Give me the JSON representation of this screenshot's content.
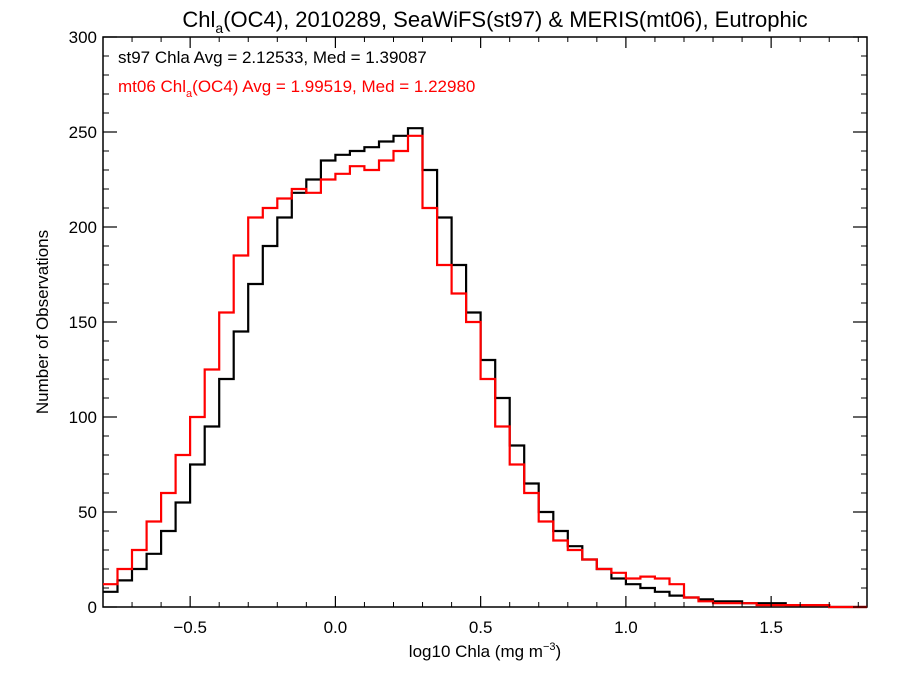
{
  "chart_data": {
    "type": "line",
    "title": {
      "prefix": "Chl",
      "subscript": "a",
      "rest": "(OC4), 2010289, SeaWiFS(st97) & MERIS(mt06), Eutrophic"
    },
    "xlabel": {
      "main": "log10 Chla (mg m",
      "superscript": "−3",
      "close": ")"
    },
    "ylabel": "Number of Observations",
    "xlim": [
      -0.8,
      1.83
    ],
    "ylim": [
      0,
      300
    ],
    "x_ticks": [
      -0.5,
      0.0,
      0.5,
      1.0,
      1.5
    ],
    "x_tick_labels": [
      "−0.5",
      "0.0",
      "0.5",
      "1.0",
      "1.5"
    ],
    "y_ticks": [
      0,
      50,
      100,
      150,
      200,
      250,
      300
    ],
    "y_tick_labels": [
      "0",
      "50",
      "100",
      "150",
      "200",
      "250",
      "300"
    ],
    "annotations": [
      {
        "series": "st97",
        "color": "#000000",
        "text": "st97 Chla Avg = 2.12533, Med = 1.39087"
      },
      {
        "series": "mt06",
        "color": "#ff0000",
        "prefix": "mt06 Chl",
        "subscript": "a",
        "rest": "(OC4) Avg = 1.99519, Med = 1.22980"
      }
    ],
    "series": [
      {
        "name": "st97",
        "color": "#000000",
        "bin_width": 0.05,
        "x": [
          -0.775,
          -0.725,
          -0.675,
          -0.625,
          -0.575,
          -0.525,
          -0.475,
          -0.425,
          -0.375,
          -0.325,
          -0.275,
          -0.225,
          -0.175,
          -0.125,
          -0.075,
          -0.025,
          0.025,
          0.075,
          0.125,
          0.175,
          0.225,
          0.275,
          0.325,
          0.375,
          0.425,
          0.475,
          0.525,
          0.575,
          0.625,
          0.675,
          0.725,
          0.775,
          0.825,
          0.875,
          0.925,
          0.975,
          1.025,
          1.075,
          1.125,
          1.175,
          1.225,
          1.275,
          1.325,
          1.375,
          1.425,
          1.475,
          1.525,
          1.575,
          1.625,
          1.675,
          1.725,
          1.775,
          1.825
        ],
        "y": [
          8,
          14,
          20,
          28,
          40,
          55,
          75,
          95,
          120,
          145,
          170,
          190,
          205,
          218,
          225,
          235,
          238,
          240,
          242,
          245,
          248,
          252,
          230,
          205,
          180,
          155,
          130,
          110,
          85,
          65,
          50,
          40,
          32,
          25,
          20,
          15,
          12,
          10,
          8,
          6,
          5,
          4,
          3,
          3,
          2,
          2,
          2,
          1,
          1,
          1,
          0,
          0,
          0
        ]
      },
      {
        "name": "mt06",
        "color": "#ff0000",
        "bin_width": 0.05,
        "x": [
          -0.775,
          -0.725,
          -0.675,
          -0.625,
          -0.575,
          -0.525,
          -0.475,
          -0.425,
          -0.375,
          -0.325,
          -0.275,
          -0.225,
          -0.175,
          -0.125,
          -0.075,
          -0.025,
          0.025,
          0.075,
          0.125,
          0.175,
          0.225,
          0.275,
          0.325,
          0.375,
          0.425,
          0.475,
          0.525,
          0.575,
          0.625,
          0.675,
          0.725,
          0.775,
          0.825,
          0.875,
          0.925,
          0.975,
          1.025,
          1.075,
          1.125,
          1.175,
          1.225,
          1.275,
          1.325,
          1.375,
          1.425,
          1.475,
          1.525,
          1.575,
          1.625,
          1.675,
          1.725,
          1.775,
          1.825
        ],
        "y": [
          12,
          20,
          30,
          45,
          60,
          80,
          100,
          125,
          155,
          185,
          205,
          210,
          215,
          220,
          218,
          225,
          228,
          232,
          230,
          235,
          240,
          248,
          210,
          180,
          165,
          150,
          120,
          95,
          75,
          60,
          45,
          35,
          30,
          25,
          20,
          18,
          15,
          16,
          15,
          12,
          5,
          3,
          2,
          2,
          2,
          1,
          1,
          1,
          1,
          1,
          0,
          0,
          0
        ]
      }
    ]
  }
}
